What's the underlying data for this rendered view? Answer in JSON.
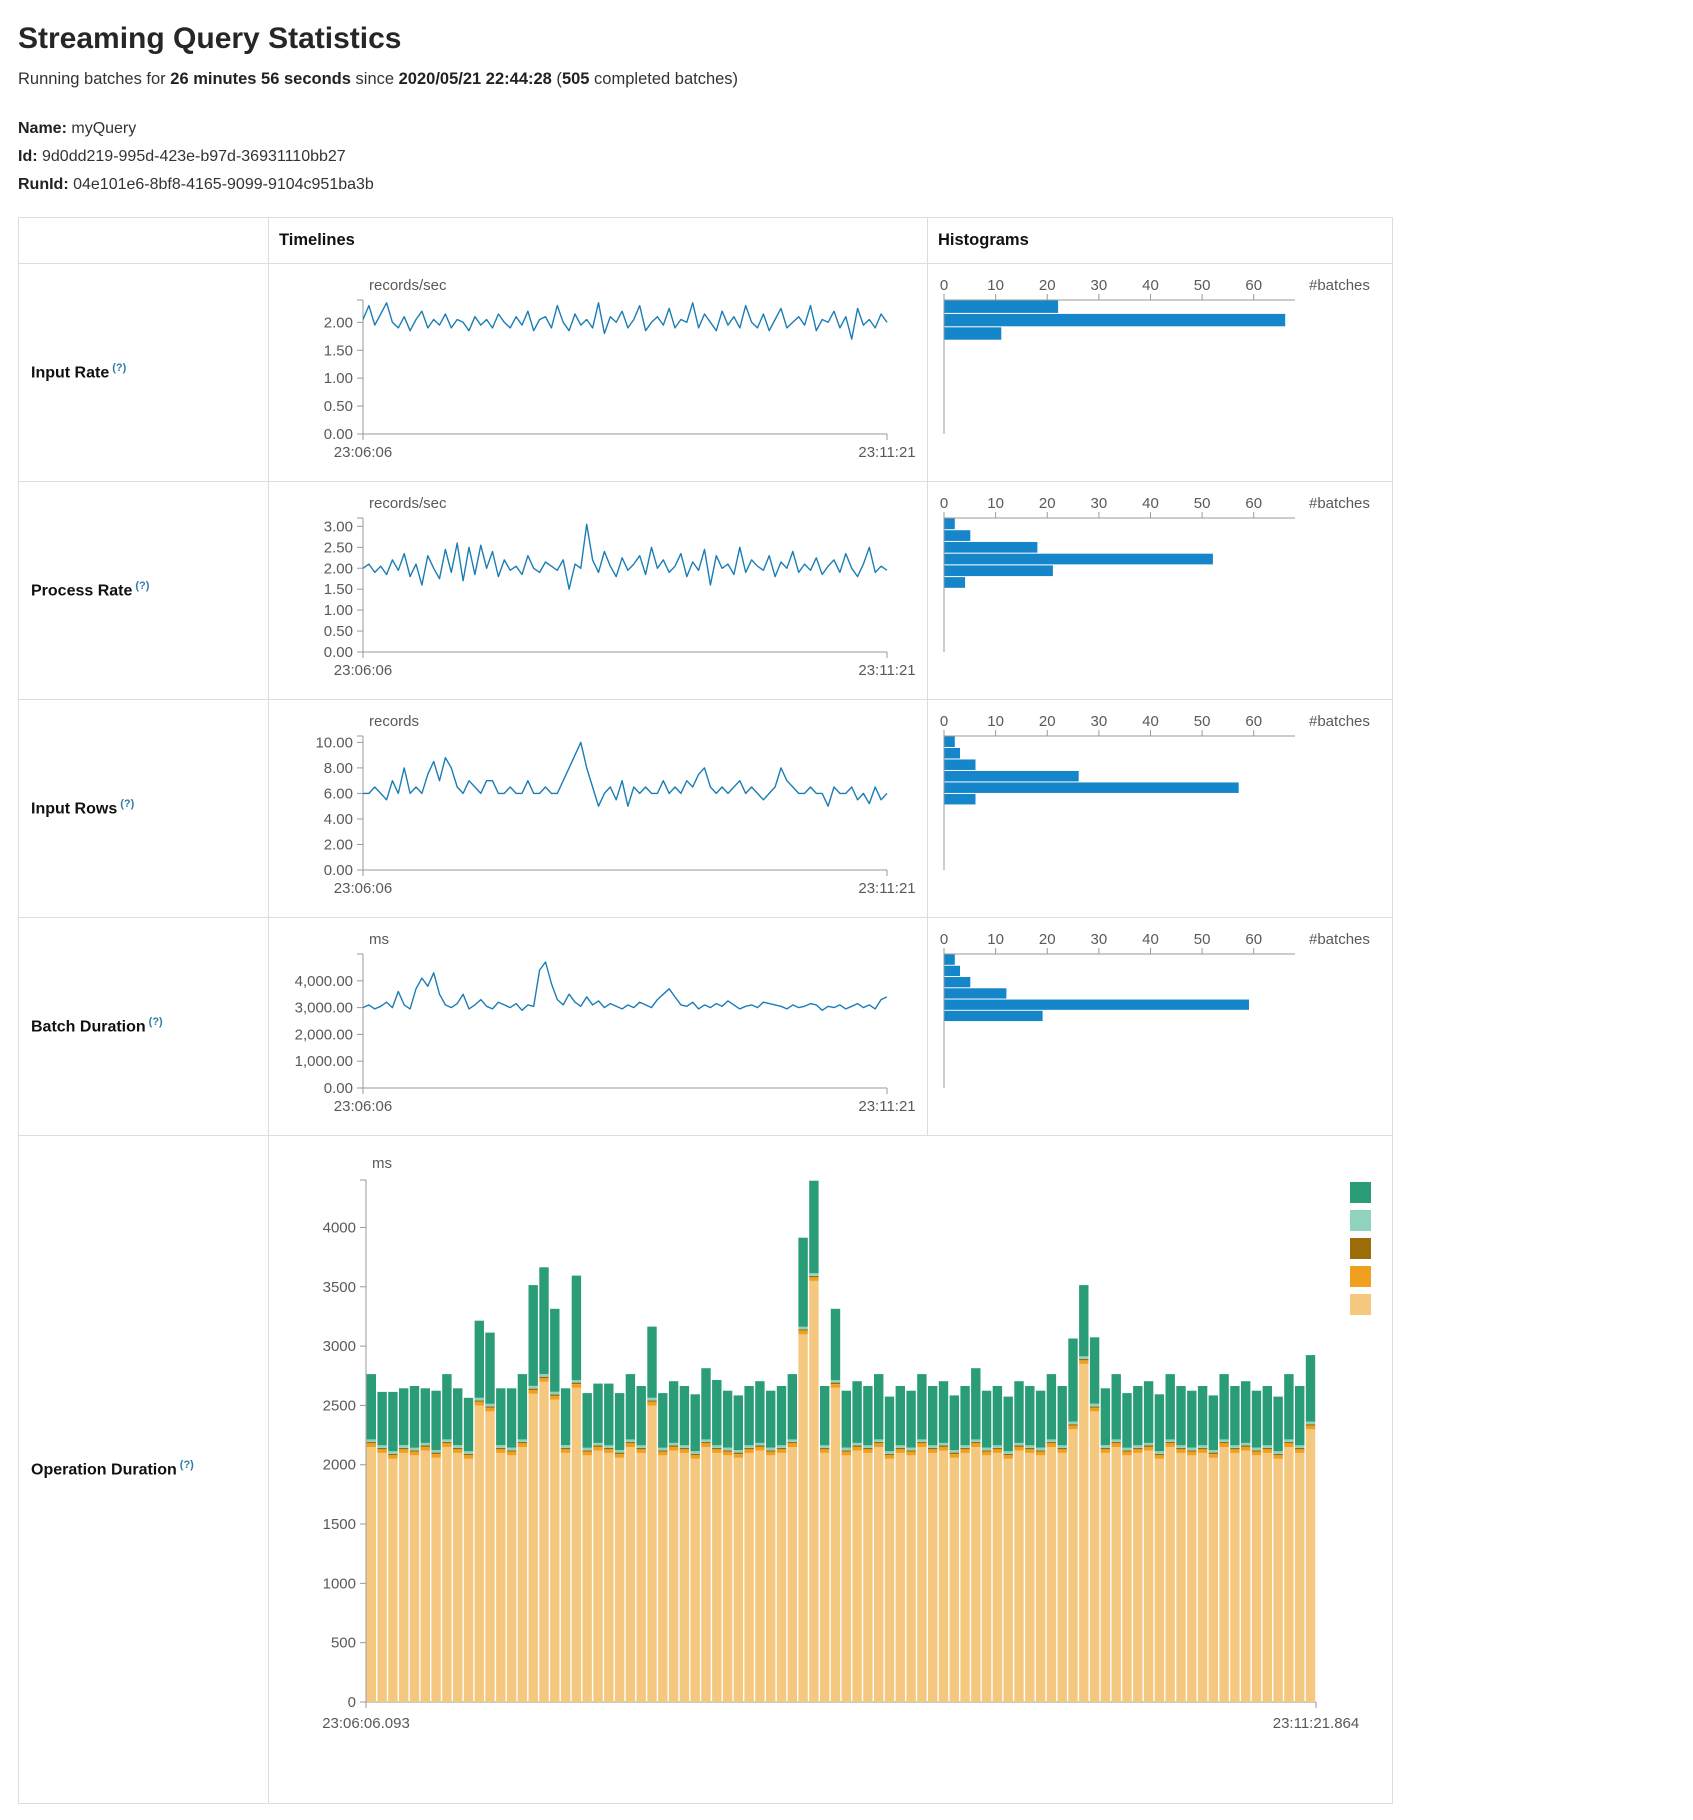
{
  "page": {
    "title": "Streaming Query Statistics"
  },
  "subtitle": {
    "p1": "Running batches for ",
    "duration": "26 minutes 56 seconds",
    "p2": " since ",
    "start_time": "2020/05/21 22:44:28",
    "p3": " (",
    "count": "505",
    "p4": " completed batches)"
  },
  "meta": {
    "name_label": "Name:",
    "name": "myQuery",
    "id_label": "Id:",
    "id": "9d0dd219-995d-423e-b97d-36931110bb27",
    "runid_label": "RunId:",
    "runid": "04e101e6-8bf8-4165-9099-9104c951ba3b"
  },
  "table": {
    "timelines_header": "Timelines",
    "histograms_header": "Histograms"
  },
  "hint_label": "(?)",
  "colors": {
    "line": "#1b7db5",
    "bar": "#1586c9",
    "axis": "#999999"
  },
  "charts": {
    "input_rate": {
      "label": "Input Rate",
      "timeline": {
        "type": "line",
        "unit": "records/sec",
        "x_start": "23:06:06",
        "x_end": "23:11:21",
        "ymax": 2.4,
        "yticks": [
          {
            "v": 0,
            "t": "0.00"
          },
          {
            "v": 0.5,
            "t": "0.50"
          },
          {
            "v": 1,
            "t": "1.00"
          },
          {
            "v": 1.5,
            "t": "1.50"
          },
          {
            "v": 2,
            "t": "2.00"
          }
        ],
        "values": [
          2.05,
          2.3,
          1.95,
          2.15,
          2.35,
          2.0,
          1.9,
          2.1,
          1.85,
          2.05,
          2.2,
          1.9,
          2.05,
          1.95,
          2.15,
          1.9,
          2.05,
          2.0,
          1.85,
          2.1,
          1.95,
          2.05,
          1.9,
          2.15,
          2.0,
          1.9,
          2.1,
          1.95,
          2.2,
          1.85,
          2.05,
          2.1,
          1.9,
          2.3,
          2.0,
          1.85,
          2.15,
          1.95,
          2.05,
          1.9,
          2.35,
          1.8,
          2.1,
          2.0,
          2.2,
          1.9,
          2.05,
          2.3,
          1.85,
          2.0,
          2.1,
          1.95,
          2.25,
          1.9,
          2.05,
          2.0,
          2.35,
          1.9,
          2.15,
          2.0,
          1.85,
          2.2,
          1.95,
          2.1,
          1.9,
          2.3,
          2.0,
          1.9,
          2.15,
          1.85,
          2.05,
          2.25,
          1.9,
          2.0,
          2.1,
          1.95,
          2.3,
          1.85,
          2.05,
          2.0,
          2.2,
          1.9,
          2.1,
          1.7,
          2.25,
          1.95,
          2.05,
          1.9,
          2.15,
          2.0
        ]
      },
      "histogram": {
        "type": "hbar",
        "xlabel": "#batches",
        "xticks": [
          0,
          10,
          20,
          30,
          40,
          50,
          60
        ],
        "xmax": 68,
        "ymax": 2.4,
        "bins": [
          {
            "hi": 2.4,
            "lo": 2.16,
            "count": 22
          },
          {
            "hi": 2.16,
            "lo": 1.92,
            "count": 66
          },
          {
            "hi": 1.92,
            "lo": 1.68,
            "count": 11
          }
        ]
      }
    },
    "process_rate": {
      "label": "Process Rate",
      "timeline": {
        "type": "line",
        "unit": "records/sec",
        "x_start": "23:06:06",
        "x_end": "23:11:21",
        "ymax": 3.2,
        "yticks": [
          {
            "v": 0,
            "t": "0.00"
          },
          {
            "v": 0.5,
            "t": "0.50"
          },
          {
            "v": 1,
            "t": "1.00"
          },
          {
            "v": 1.5,
            "t": "1.50"
          },
          {
            "v": 2,
            "t": "2.00"
          },
          {
            "v": 2.5,
            "t": "2.50"
          },
          {
            "v": 3,
            "t": "3.00"
          }
        ],
        "values": [
          2.0,
          2.1,
          1.9,
          2.05,
          1.85,
          2.2,
          1.95,
          2.35,
          1.8,
          2.1,
          1.6,
          2.3,
          2.0,
          1.75,
          2.45,
          1.9,
          2.6,
          1.7,
          2.5,
          1.85,
          2.55,
          2.0,
          2.4,
          1.8,
          2.2,
          1.95,
          2.05,
          1.85,
          2.3,
          2.0,
          1.9,
          2.15,
          2.05,
          1.95,
          2.2,
          1.5,
          2.1,
          2.0,
          3.05,
          2.2,
          1.9,
          2.4,
          2.05,
          1.8,
          2.25,
          1.95,
          2.1,
          2.3,
          1.85,
          2.5,
          2.0,
          2.2,
          1.9,
          2.05,
          2.35,
          1.8,
          2.15,
          1.95,
          2.45,
          1.6,
          2.3,
          2.0,
          2.1,
          1.85,
          2.5,
          1.9,
          2.2,
          2.05,
          1.95,
          2.3,
          1.8,
          2.15,
          2.0,
          2.4,
          1.9,
          2.1,
          1.95,
          2.25,
          1.85,
          2.05,
          2.2,
          1.9,
          2.35,
          2.0,
          1.8,
          2.1,
          2.5,
          1.9,
          2.05,
          1.95
        ]
      },
      "histogram": {
        "type": "hbar",
        "xlabel": "#batches",
        "xticks": [
          0,
          10,
          20,
          30,
          40,
          50,
          60
        ],
        "xmax": 68,
        "ymax": 3.2,
        "bins": [
          {
            "hi": 3.2,
            "lo": 2.92,
            "count": 2
          },
          {
            "hi": 2.92,
            "lo": 2.64,
            "count": 5
          },
          {
            "hi": 2.64,
            "lo": 2.36,
            "count": 18
          },
          {
            "hi": 2.36,
            "lo": 2.08,
            "count": 52
          },
          {
            "hi": 2.08,
            "lo": 1.8,
            "count": 21
          },
          {
            "hi": 1.8,
            "lo": 1.52,
            "count": 4
          }
        ]
      }
    },
    "input_rows": {
      "label": "Input Rows",
      "timeline": {
        "type": "line",
        "unit": "records",
        "x_start": "23:06:06",
        "x_end": "23:11:21",
        "ymax": 10.5,
        "yticks": [
          {
            "v": 0,
            "t": "0.00"
          },
          {
            "v": 2,
            "t": "2.00"
          },
          {
            "v": 4,
            "t": "4.00"
          },
          {
            "v": 6,
            "t": "6.00"
          },
          {
            "v": 8,
            "t": "8.00"
          },
          {
            "v": 10,
            "t": "10.00"
          }
        ],
        "values": [
          6,
          6,
          6.5,
          6,
          5.5,
          7,
          6,
          8,
          6,
          6.5,
          6,
          7.5,
          8.5,
          7,
          8.8,
          8,
          6.5,
          6,
          7,
          6.5,
          6,
          7,
          7,
          6,
          6,
          6.5,
          6,
          6,
          7,
          6,
          6,
          6.5,
          6,
          6,
          7,
          8,
          9,
          10,
          8,
          6.5,
          5,
          6,
          6.5,
          5.5,
          7,
          5,
          6.5,
          6,
          6.5,
          6,
          6,
          7,
          6,
          6.5,
          6,
          7,
          6.5,
          7.5,
          8,
          6.5,
          6,
          6.5,
          6,
          6.5,
          7,
          6,
          6.5,
          6,
          5.5,
          6,
          6.5,
          8,
          7,
          6.5,
          6,
          6,
          6.5,
          6,
          6,
          5,
          6.5,
          6,
          6,
          6.5,
          5.5,
          6,
          5.2,
          6.5,
          5.5,
          6
        ]
      },
      "histogram": {
        "type": "hbar",
        "xlabel": "#batches",
        "xticks": [
          0,
          10,
          20,
          30,
          40,
          50,
          60
        ],
        "xmax": 68,
        "ymax": 10.5,
        "bins": [
          {
            "hi": 10.5,
            "lo": 9.6,
            "count": 2
          },
          {
            "hi": 9.6,
            "lo": 8.7,
            "count": 3
          },
          {
            "hi": 8.7,
            "lo": 7.8,
            "count": 6
          },
          {
            "hi": 7.8,
            "lo": 6.9,
            "count": 26
          },
          {
            "hi": 6.9,
            "lo": 6.0,
            "count": 57
          },
          {
            "hi": 6.0,
            "lo": 5.1,
            "count": 6
          }
        ]
      }
    },
    "batch_duration": {
      "label": "Batch Duration",
      "timeline": {
        "type": "line",
        "unit": "ms",
        "x_start": "23:06:06",
        "x_end": "23:11:21",
        "ymax": 5000,
        "yticks": [
          {
            "v": 0,
            "t": "0.00"
          },
          {
            "v": 1000,
            "t": "1,000.00"
          },
          {
            "v": 2000,
            "t": "2,000.00"
          },
          {
            "v": 3000,
            "t": "3,000.00"
          },
          {
            "v": 4000,
            "t": "4,000.00"
          }
        ],
        "values": [
          3000,
          3100,
          2950,
          3050,
          3200,
          3000,
          3600,
          3100,
          2950,
          3700,
          4100,
          3800,
          4300,
          3500,
          3100,
          3000,
          3150,
          3500,
          2950,
          3100,
          3300,
          3050,
          2950,
          3200,
          3100,
          3000,
          3150,
          2900,
          3100,
          3050,
          4400,
          4700,
          3900,
          3300,
          3100,
          3500,
          3200,
          3050,
          3400,
          3100,
          3250,
          3000,
          3150,
          3050,
          2950,
          3100,
          3000,
          3200,
          3100,
          3000,
          3300,
          3500,
          3700,
          3400,
          3100,
          3050,
          3200,
          2950,
          3100,
          3000,
          3150,
          3050,
          3250,
          3100,
          2950,
          3050,
          3100,
          3000,
          3200,
          3150,
          3100,
          3050,
          2950,
          3100,
          3000,
          3050,
          3150,
          3100,
          2900,
          3050,
          3000,
          3100,
          2950,
          3050,
          3150,
          3000,
          3100,
          2950,
          3300,
          3400
        ]
      },
      "histogram": {
        "type": "hbar",
        "xlabel": "#batches",
        "xticks": [
          0,
          10,
          20,
          30,
          40,
          50,
          60
        ],
        "xmax": 68,
        "ymax": 5000,
        "bins": [
          {
            "hi": 5000,
            "lo": 4580,
            "count": 2
          },
          {
            "hi": 4580,
            "lo": 4160,
            "count": 3
          },
          {
            "hi": 4160,
            "lo": 3740,
            "count": 5
          },
          {
            "hi": 3740,
            "lo": 3320,
            "count": 12
          },
          {
            "hi": 3320,
            "lo": 2900,
            "count": 59
          },
          {
            "hi": 2900,
            "lo": 2480,
            "count": 19
          }
        ]
      }
    },
    "operation_duration": {
      "label": "Operation Duration",
      "timeline": {
        "type": "stack",
        "unit": "ms",
        "x_start": "23:06:06.093",
        "x_end": "23:11:21.864",
        "ymax": 4400,
        "yticks": [
          {
            "v": 0,
            "t": "0"
          },
          {
            "v": 500,
            "t": "500"
          },
          {
            "v": 1000,
            "t": "1000"
          },
          {
            "v": 1500,
            "t": "1500"
          },
          {
            "v": 2000,
            "t": "2000"
          },
          {
            "v": 2500,
            "t": "2500"
          },
          {
            "v": 3000,
            "t": "3000"
          },
          {
            "v": 3500,
            "t": "3500"
          },
          {
            "v": 4000,
            "t": "4000"
          }
        ],
        "series": [
          {
            "name": "pale-orange",
            "color": "#f5c87f",
            "values": [
              2150,
              2100,
              2050,
              2100,
              2080,
              2120,
              2060,
              2150,
              2100,
              2050,
              2500,
              2450,
              2100,
              2080,
              2150,
              2600,
              2700,
              2550,
              2100,
              2650,
              2080,
              2120,
              2100,
              2060,
              2150,
              2100,
              2500,
              2080,
              2120,
              2100,
              2050,
              2150,
              2100,
              2080,
              2060,
              2100,
              2120,
              2080,
              2100,
              2150,
              3100,
              3550,
              2100,
              2650,
              2080,
              2120,
              2100,
              2150,
              2050,
              2100,
              2080,
              2150,
              2100,
              2120,
              2060,
              2100,
              2150,
              2080,
              2100,
              2050,
              2120,
              2100,
              2080,
              2150,
              2100,
              2300,
              2850,
              2450,
              2100,
              2150,
              2080,
              2100,
              2120,
              2050,
              2150,
              2100,
              2080,
              2100,
              2060,
              2150,
              2100,
              2120,
              2080,
              2100,
              2050,
              2150,
              2100,
              2300
            ]
          },
          {
            "name": "orange",
            "color": "#efa020",
            "constant": 30
          },
          {
            "name": "dark-gold",
            "color": "#9c6c08",
            "constant": 12
          },
          {
            "name": "light-teal",
            "color": "#8fd2bd",
            "constant": 22
          },
          {
            "name": "teal",
            "color": "#2a9d78",
            "values": [
              550,
              450,
              500,
              480,
              520,
              460,
              500,
              550,
              480,
              450,
              650,
              600,
              480,
              500,
              550,
              850,
              900,
              700,
              480,
              880,
              460,
              500,
              520,
              480,
              550,
              500,
              600,
              460,
              520,
              500,
              480,
              600,
              550,
              480,
              460,
              500,
              520,
              480,
              500,
              550,
              750,
              780,
              500,
              600,
              480,
              520,
              500,
              550,
              460,
              500,
              480,
              550,
              500,
              520,
              460,
              500,
              600,
              480,
              500,
              460,
              520,
              500,
              480,
              550,
              500,
              700,
              600,
              560,
              480,
              550,
              460,
              500,
              520,
              480,
              550,
              500,
              480,
              500,
              460,
              550,
              500,
              520,
              480,
              500,
              460,
              550,
              500,
              560
            ]
          }
        ],
        "legend": [
          "#2a9d78",
          "#8fd2bd",
          "#9c6c08",
          "#efa020",
          "#f5c87f"
        ]
      }
    }
  }
}
